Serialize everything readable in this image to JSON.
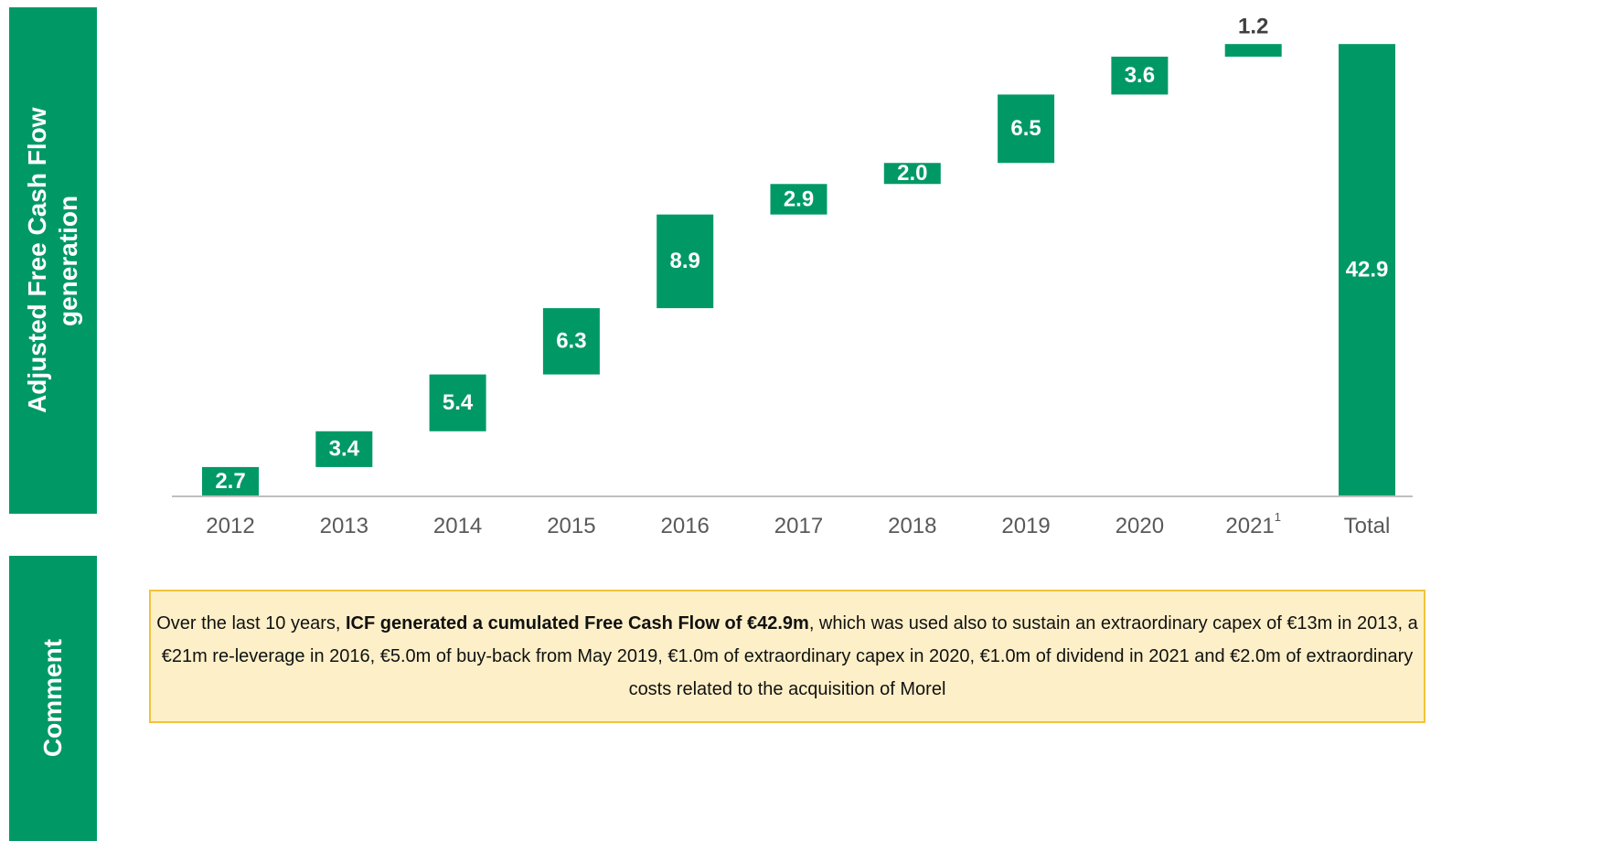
{
  "chart_data": {
    "type": "waterfall",
    "categories": [
      "2012",
      "2013",
      "2014",
      "2015",
      "2016",
      "2017",
      "2018",
      "2019",
      "2020",
      "2021",
      "Total"
    ],
    "category_notes": [
      null,
      null,
      null,
      null,
      null,
      null,
      null,
      null,
      null,
      "1",
      null
    ],
    "values": [
      2.7,
      3.4,
      5.4,
      6.3,
      8.9,
      2.9,
      2.0,
      6.5,
      3.6,
      1.2,
      42.9
    ],
    "value_labels": [
      "2.7",
      "3.4",
      "5.4",
      "6.3",
      "8.9",
      "2.9",
      "2.0",
      "6.5",
      "3.6",
      "1.2",
      "42.9"
    ],
    "measures": [
      "relative",
      "relative",
      "relative",
      "relative",
      "relative",
      "relative",
      "relative",
      "relative",
      "relative",
      "relative",
      "total"
    ],
    "color": "#009966",
    "ylim": [
      0,
      45
    ]
  },
  "side_labels": [
    "Adjusted Free Cash Flow generation",
    "Comment"
  ],
  "comment": {
    "before": "Over the last 10 years, ",
    "bold": "ICF generated a cumulated Free Cash Flow of €42.9m",
    "after": ", which was used also to sustain an extraordinary capex of €13m in 2013, a €21m re-leverage in 2016, €5.0m of buy-back from May 2019, €1.0m of extraordinary capex in 2020, €1.0m of dividend in 2021 and €2.0m of extraordinary costs related to the acquisition of Morel"
  }
}
